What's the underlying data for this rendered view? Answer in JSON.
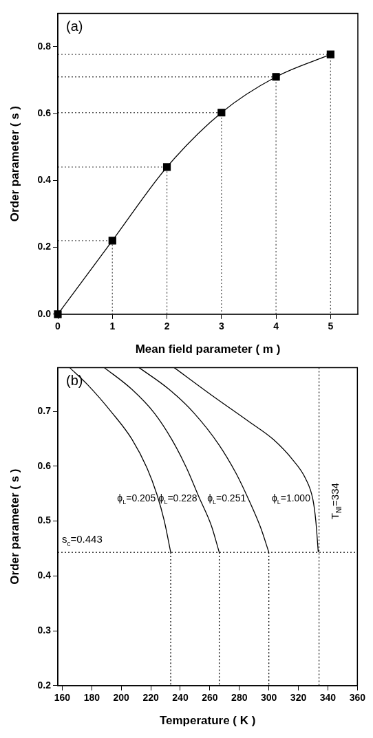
{
  "chart_data": [
    {
      "type": "line",
      "xlabel": "Mean field parameter ( m )",
      "ylabel": "Order parameter ( s )",
      "annotations": [
        "(a)"
      ],
      "xlim": [
        0,
        5.5
      ],
      "ylim": [
        0,
        0.9
      ],
      "xticks": [
        0,
        1,
        2,
        3,
        4,
        5
      ],
      "yticks": [
        {
          "value": 0,
          "label": "0.0"
        },
        0.2,
        0.4,
        0.6,
        0.8
      ],
      "series": [
        {
          "color": "#000000",
          "marker": "square",
          "line_style": "solid",
          "x": [
            0,
            1,
            2,
            3,
            4,
            5
          ],
          "values": [
            0,
            0.22,
            0.44,
            0.603,
            0.71,
            0.777
          ]
        },
        {
          "color": "#555555",
          "marker": "none",
          "line_style": "dotted",
          "x": [
            0,
            1,
            1
          ],
          "values": [
            0.22,
            0.22,
            0
          ]
        },
        {
          "color": "#555555",
          "marker": "none",
          "line_style": "dotted",
          "x": [
            0,
            2,
            2
          ],
          "values": [
            0.44,
            0.44,
            0
          ]
        },
        {
          "color": "#555555",
          "marker": "none",
          "line_style": "dotted",
          "x": [
            0,
            3,
            3
          ],
          "values": [
            0.603,
            0.603,
            0
          ]
        },
        {
          "color": "#555555",
          "marker": "none",
          "line_style": "dotted",
          "x": [
            0,
            4,
            4
          ],
          "values": [
            0.71,
            0.71,
            0
          ]
        },
        {
          "color": "#555555",
          "marker": "none",
          "line_style": "dotted",
          "x": [
            0,
            5,
            5
          ],
          "values": [
            0.777,
            0.777,
            0
          ]
        }
      ]
    },
    {
      "type": "line",
      "xlabel": "Temperature ( K )",
      "ylabel": "Order parameter ( s )",
      "annotations": [
        "(b)"
      ],
      "xlim": [
        157,
        360
      ],
      "ylim": [
        0.2,
        0.78
      ],
      "xticks": [
        160,
        180,
        200,
        220,
        240,
        260,
        280,
        300,
        320,
        340,
        360
      ],
      "yticks": [
        0.2,
        0.3,
        0.4,
        0.5,
        0.6,
        0.7
      ],
      "ref_lines": [
        {
          "axis": "y",
          "value": 0.443,
          "label": "s$_{c}$=0.443",
          "line_style": "dotted"
        },
        {
          "axis": "x",
          "value": 334,
          "label": "T$_{NI}$=334",
          "line_style": "dotted"
        }
      ],
      "series": [
        {
          "name": "ϕ$_{L}$=0.205",
          "color": "#000000",
          "marker": "none",
          "line_style": "solid",
          "x": [
            165,
            177.1,
            193.9,
            207.3,
            217.4,
            224.1,
            229.1,
            233.5
          ],
          "values": [
            0.78,
            0.749,
            0.697,
            0.649,
            0.597,
            0.549,
            0.501,
            0.443
          ]
        },
        {
          "name": "ϕ$_{L}$=0.228",
          "color": "#000000",
          "marker": "none",
          "line_style": "solid",
          "x": [
            188.5,
            207.3,
            222.4,
            234.2,
            244.2,
            252.6,
            261,
            266.4
          ],
          "values": [
            0.78,
            0.74,
            0.697,
            0.649,
            0.597,
            0.544,
            0.492,
            0.443
          ]
        },
        {
          "name": "ϕ$_{L}$=0.251",
          "color": "#000000",
          "marker": "none",
          "line_style": "solid",
          "x": [
            212,
            232.5,
            249.3,
            266,
            277.8,
            286.2,
            294.6,
            300
          ],
          "values": [
            0.78,
            0.74,
            0.697,
            0.64,
            0.587,
            0.54,
            0.487,
            0.443
          ]
        },
        {
          "name": "ϕ$_{L}$=1.000",
          "color": "#000000",
          "marker": "none",
          "line_style": "solid",
          "x": [
            235.8,
            261,
            286.2,
            303,
            316.4,
            324.8,
            329.8,
            331.8,
            333.5
          ],
          "values": [
            0.78,
            0.73,
            0.682,
            0.649,
            0.611,
            0.578,
            0.54,
            0.501,
            0.443
          ]
        },
        {
          "color": "#000000",
          "marker": "none",
          "line_style": "dotted",
          "x": [
            233.5,
            233.5
          ],
          "values": [
            0.443,
            0.2
          ]
        },
        {
          "color": "#000000",
          "marker": "none",
          "line_style": "dotted",
          "x": [
            266.4,
            266.4
          ],
          "values": [
            0.443,
            0.2
          ]
        },
        {
          "color": "#000000",
          "marker": "none",
          "line_style": "dotted",
          "x": [
            300,
            300
          ],
          "values": [
            0.443,
            0.2
          ]
        }
      ]
    }
  ]
}
